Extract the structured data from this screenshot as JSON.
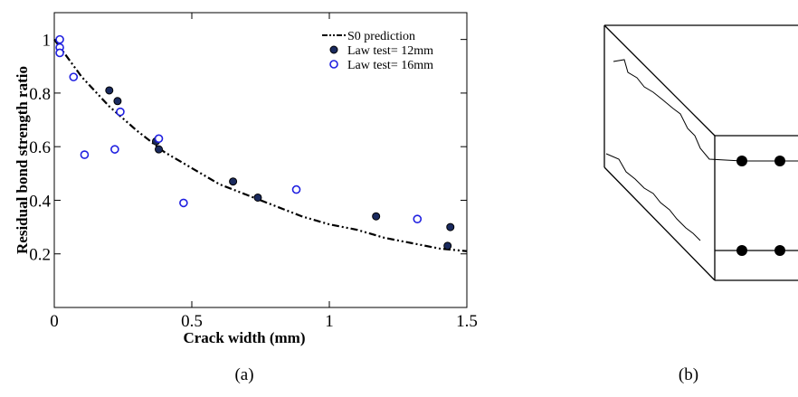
{
  "chart_data": {
    "type": "scatter",
    "xlabel": "Crack width (mm)",
    "ylabel": "Residual bond strength ratio",
    "xlim": [
      0,
      1.5
    ],
    "ylim": [
      0,
      1.1
    ],
    "xticks": [
      0,
      0.5,
      1,
      1.5
    ],
    "yticks": [
      0.2,
      0.4,
      0.6,
      0.8,
      1
    ],
    "legend": "upper right",
    "series": [
      {
        "name": "S0 prediction",
        "type": "line",
        "color": "#000000",
        "x": [
          0,
          0.1,
          0.2,
          0.3,
          0.4,
          0.5,
          0.6,
          0.7,
          0.8,
          0.9,
          1.0,
          1.1,
          1.2,
          1.3,
          1.4,
          1.5
        ],
        "values": [
          1.0,
          0.86,
          0.75,
          0.66,
          0.58,
          0.52,
          0.46,
          0.42,
          0.38,
          0.34,
          0.31,
          0.29,
          0.26,
          0.24,
          0.22,
          0.21
        ]
      },
      {
        "name": "Law test= 12mm",
        "type": "filled",
        "color": "#1a2a5e",
        "x": [
          0.2,
          0.23,
          0.37,
          0.38,
          0.65,
          0.74,
          1.17,
          1.43,
          1.44
        ],
        "values": [
          0.81,
          0.77,
          0.62,
          0.59,
          0.47,
          0.41,
          0.34,
          0.23,
          0.3
        ]
      },
      {
        "name": "Law test= 16mm",
        "type": "open",
        "color": "#1f1fe0",
        "x": [
          0.02,
          0.02,
          0.02,
          0.07,
          0.11,
          0.22,
          0.24,
          0.38,
          0.47,
          0.88,
          1.32
        ],
        "values": [
          1.0,
          0.97,
          0.95,
          0.86,
          0.57,
          0.59,
          0.73,
          0.63,
          0.39,
          0.44,
          0.33
        ]
      }
    ]
  },
  "captions": [
    "(a)",
    "(b)"
  ]
}
